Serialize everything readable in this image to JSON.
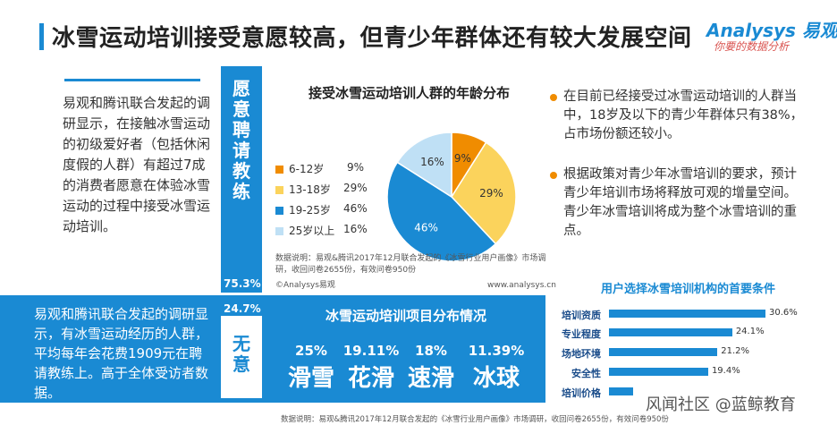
{
  "header": {
    "title": "冰雪运动培训接受意愿较高，但青少年群体还有较大发展空间",
    "logo_main": "Analysys 易观",
    "logo_sub": "你要的数据分析"
  },
  "left_panel": {
    "text": "易观和腾讯联合发起的调研显示，在接触冰雪运动的初级爱好者（包括休闲度假的人群）有超过7成的消费者愿意在体验冰雪运动的过程中接受冰雪运动培训。",
    "bar_label_chars": [
      "愿",
      "意",
      "聘",
      "请",
      "教",
      "练"
    ],
    "pct_willing": "75.3%",
    "pct_unwilling": "24.7%",
    "unwilling_chars": [
      "无",
      "意"
    ]
  },
  "bottom_band": {
    "text": "易观和腾讯联合发起的调研显示，有冰雪运动经历的人群，平均每年会花费1909元在聘请教练上。高于全体受访者数据。",
    "title": "冰雪运动培训项目分布情况",
    "items": [
      {
        "pct": "25%",
        "name": "滑雪"
      },
      {
        "pct": "19.11%",
        "name": "花滑"
      },
      {
        "pct": "18%",
        "name": "速滑"
      },
      {
        "pct": "11.39%",
        "name": "冰球"
      }
    ]
  },
  "pie_section": {
    "note": "数据说明：易观&腾讯2017年12月联合发起的《冰雪行业用户画像》市场调研，收回问卷2655份，有效问卷950份",
    "copyright": "©Analysys易观",
    "website": "www.analysys.cn"
  },
  "bullets": [
    "在目前已经接受过冰雪运动培训的人群当中，18岁及以下的青少年群体只有38%，占市场份额还较小。",
    "根据政策对青少年冰雪培训的要求，预计青少年培训市场将释放可观的增量空间。青少年冰雪培训将成为整个冰雪培训的重点。"
  ],
  "footer": {
    "note": "数据说明：易观&腾讯2017年12月联合发起的《冰雪行业用户画像》市场调研，收回问卷2655份，有效问卷950份",
    "watermark": "风闻社区 @蓝鲸教育"
  },
  "chart_data": [
    {
      "type": "pie",
      "title": "接受冰雪运动培训人群的年龄分布",
      "categories": [
        "6-12岁",
        "13-18岁",
        "19-25岁",
        "25岁以上"
      ],
      "values": [
        9,
        29,
        46,
        16
      ],
      "labels": [
        "9%",
        "29%",
        "46%",
        "16%"
      ],
      "legend_values": [
        "9%",
        "29%",
        "46%",
        "16%"
      ],
      "colors": [
        "#f08c00",
        "#fbd35c",
        "#1a8ad3",
        "#bfe0f5"
      ],
      "legend": "left"
    },
    {
      "type": "bar",
      "orientation": "horizontal",
      "title": "用户选择冰雪培训机构的首要条件",
      "categories": [
        "培训资质",
        "专业程度",
        "场地环境",
        "安全性",
        "培训价格"
      ],
      "values": [
        30.6,
        24.1,
        21.2,
        19.4,
        4.7
      ],
      "labels": [
        "30.6%",
        "24.1%",
        "21.2%",
        "19.4%",
        ""
      ],
      "color": "#1a8ad3"
    }
  ]
}
